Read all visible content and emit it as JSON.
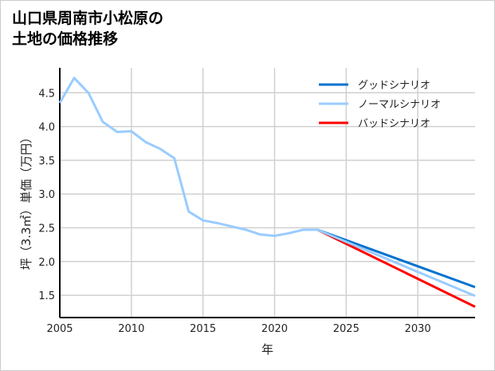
{
  "chart_data": {
    "type": "line",
    "title_line1": "山口県周南市小松原の",
    "title_line2": "土地の価格推移",
    "xlabel": "年",
    "ylabel": "坪（3.3㎡）単価（万円）",
    "xlim": [
      2005,
      2034
    ],
    "ylim": [
      1.17,
      4.87
    ],
    "grid": true,
    "legend_position": "top-right",
    "xticks": [
      2005,
      2010,
      2015,
      2020,
      2025,
      2030
    ],
    "yticks": [
      1.5,
      2.0,
      2.5,
      3.0,
      3.5,
      4.0,
      4.5
    ],
    "ytick_labels": [
      "1.5",
      "2.0",
      "2.5",
      "3.0",
      "3.5",
      "4.0",
      "4.5"
    ],
    "series": [
      {
        "name": "グッドシナリオ",
        "color": "#0072CE",
        "x": [
          2023,
          2034
        ],
        "y": [
          2.47,
          1.62
        ]
      },
      {
        "name": "ノーマルシナリオ",
        "color": "#99CCFF",
        "x": [
          2005,
          2006,
          2007,
          2008,
          2009,
          2010,
          2011,
          2012,
          2013,
          2014,
          2015,
          2016,
          2017,
          2018,
          2019,
          2020,
          2021,
          2022,
          2023,
          2034
        ],
        "y": [
          4.35,
          4.72,
          4.5,
          4.07,
          3.92,
          3.93,
          3.77,
          3.67,
          3.53,
          2.74,
          2.61,
          2.57,
          2.52,
          2.47,
          2.4,
          2.38,
          2.42,
          2.47,
          2.47,
          1.49
        ]
      },
      {
        "name": "バッドシナリオ",
        "color": "#FF0000",
        "x": [
          2023,
          2034
        ],
        "y": [
          2.47,
          1.33
        ]
      }
    ],
    "draw_order": [
      2,
      0,
      1
    ]
  }
}
